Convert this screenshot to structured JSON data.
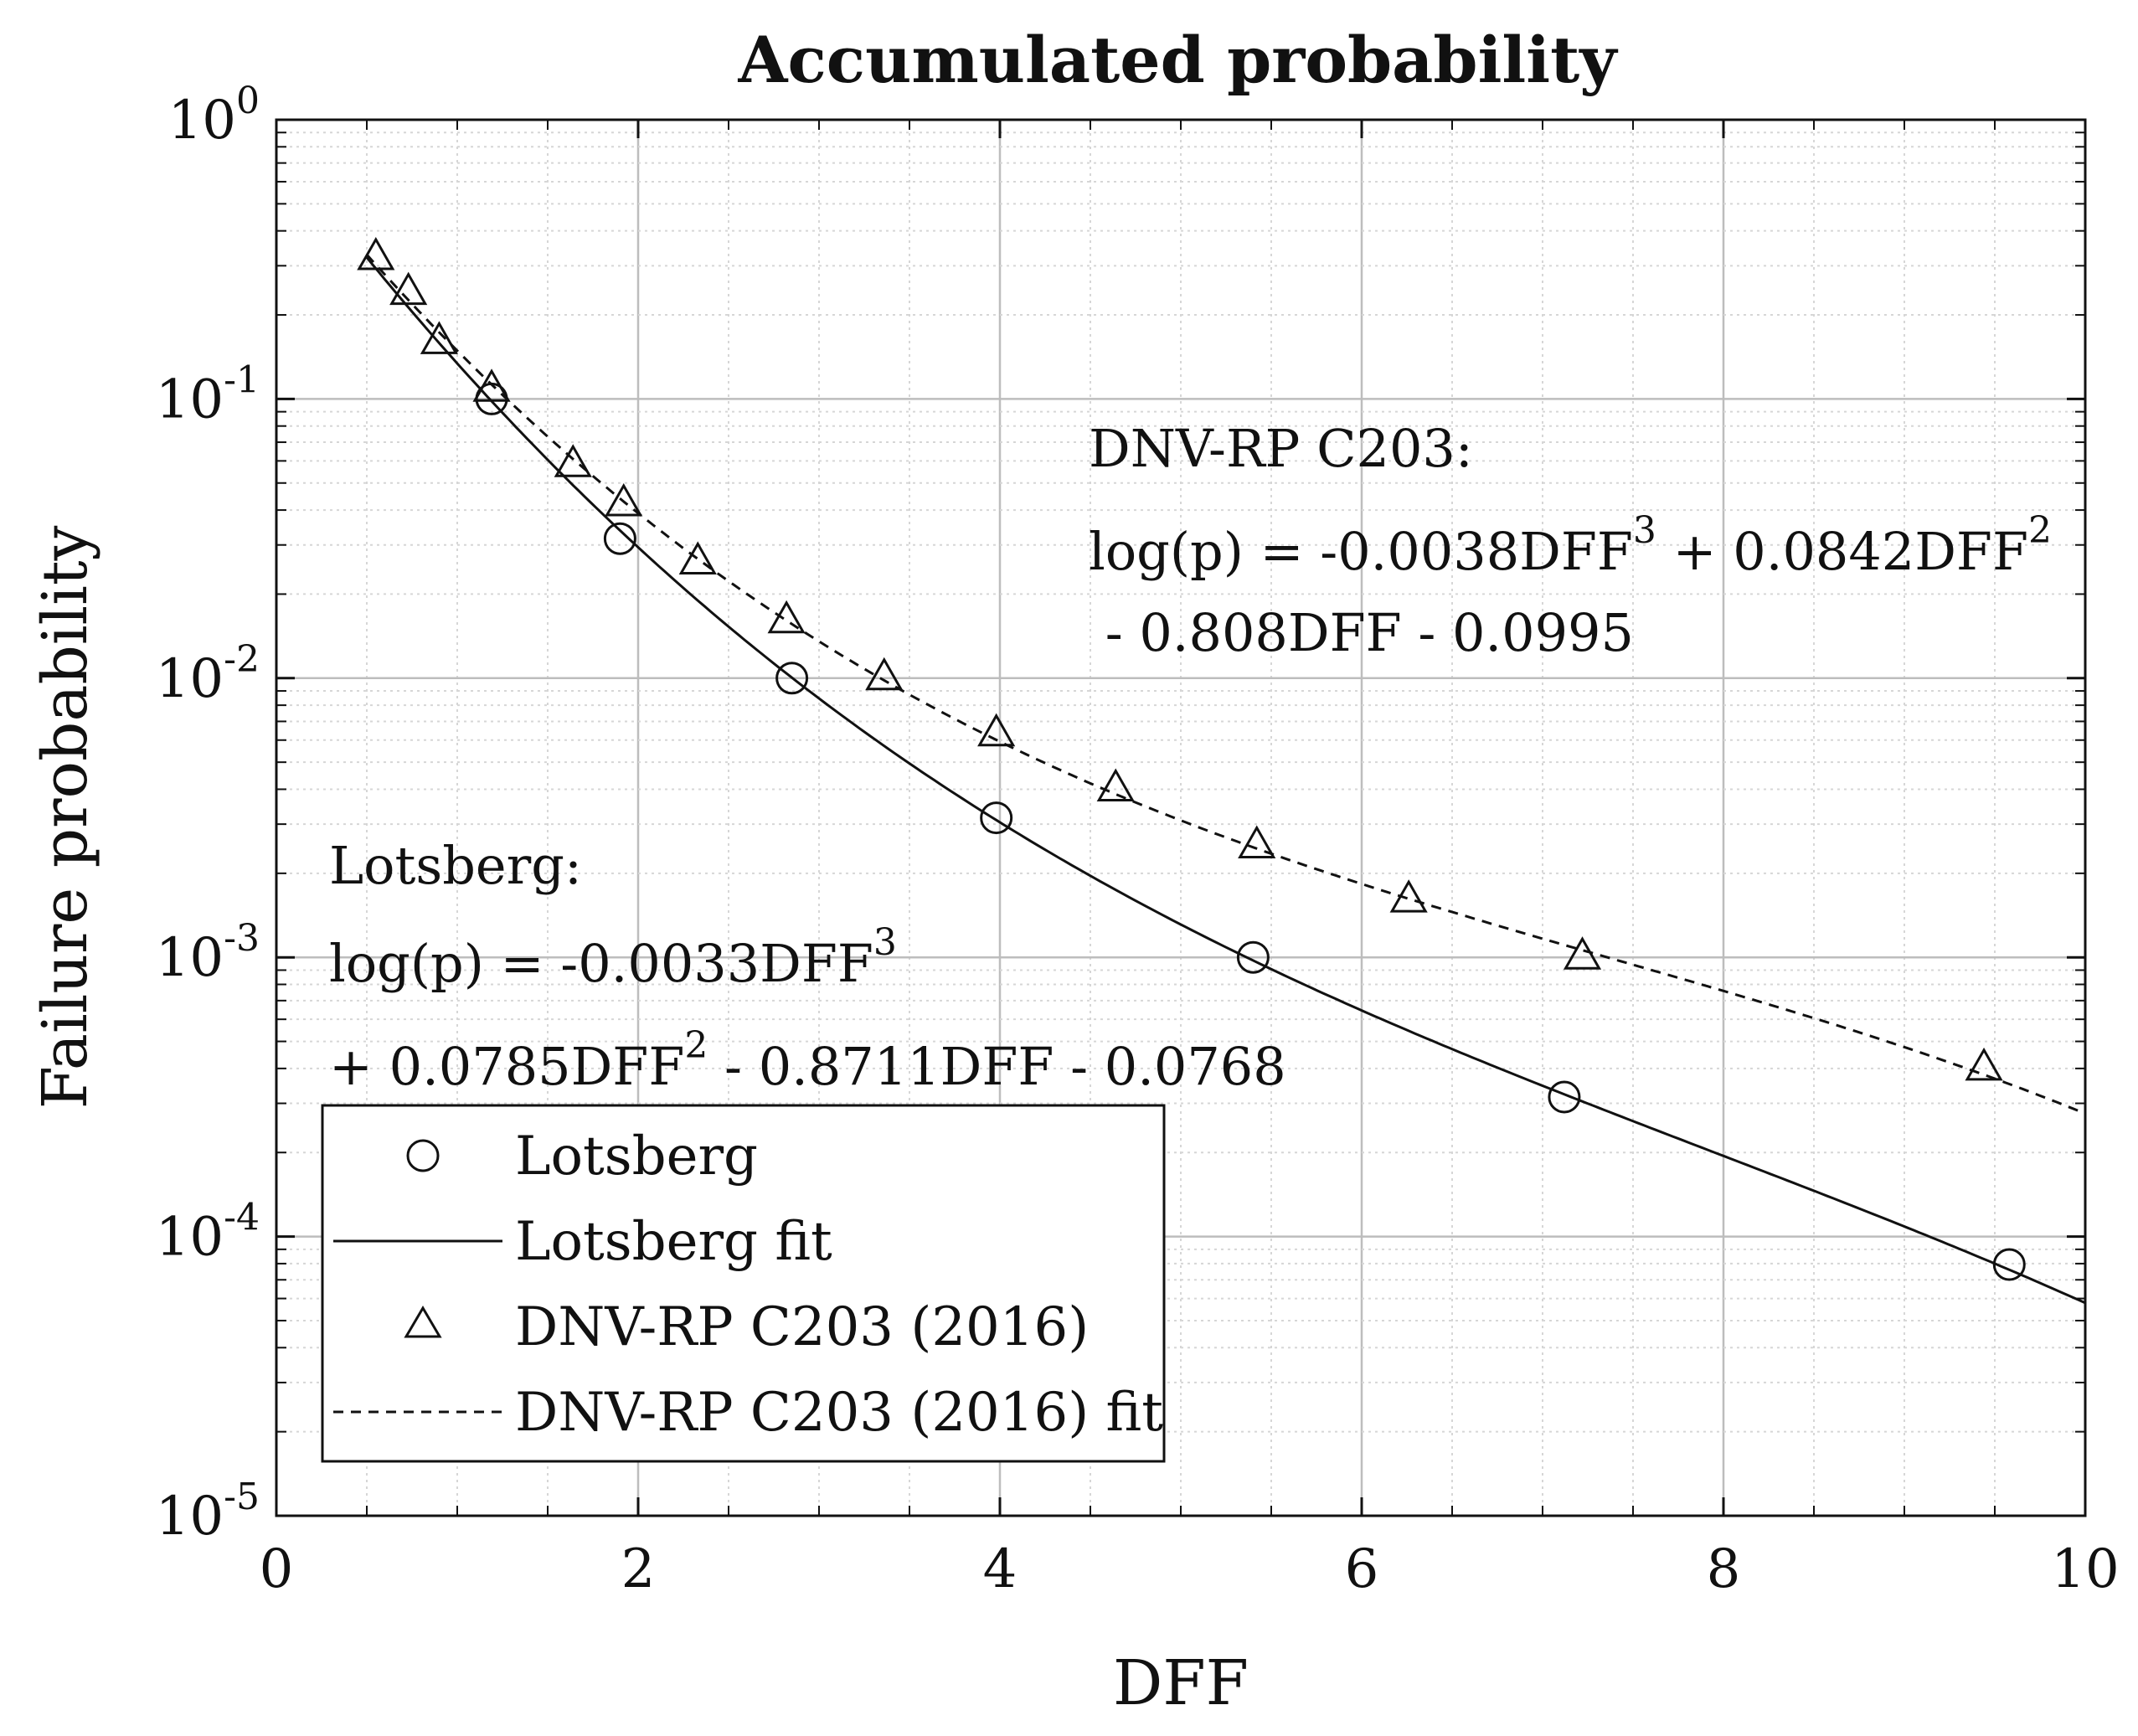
{
  "chart_data": {
    "type": "line",
    "title": "Accumulated probability",
    "xlabel": "DFF",
    "ylabel": "Failure probability",
    "xlim": [
      0,
      10
    ],
    "ylim_log10": [
      -5,
      0
    ],
    "yscale": "log",
    "grid": true,
    "x_ticks": [
      "0",
      "2",
      "4",
      "6",
      "8",
      "10"
    ],
    "y_ticks": [
      {
        "base": "10",
        "exp": "0"
      },
      {
        "base": "10",
        "exp": "-1"
      },
      {
        "base": "10",
        "exp": "-2"
      },
      {
        "base": "10",
        "exp": "-3"
      },
      {
        "base": "10",
        "exp": "-4"
      },
      {
        "base": "10",
        "exp": "-5"
      }
    ],
    "series": [
      {
        "name": "Lotsberg",
        "kind": "markers",
        "marker": "circle",
        "x": [
          1.19,
          1.9,
          2.85,
          3.98,
          5.4,
          7.12,
          9.58
        ],
        "y": [
          0.1,
          0.0316,
          0.01,
          0.00316,
          0.001,
          0.000316,
          7.94e-05
        ]
      },
      {
        "name": "Lotsberg fit",
        "kind": "line",
        "linestyle": "solid",
        "coefficients": [
          -0.0033,
          0.0785,
          -0.8711,
          -0.0768
        ],
        "x_range": [
          0.5,
          10
        ]
      },
      {
        "name": "DNV-RP C203 (2016)",
        "kind": "markers",
        "marker": "triangle",
        "x": [
          0.55,
          0.73,
          0.9,
          1.19,
          1.64,
          1.92,
          2.33,
          2.82,
          3.36,
          3.98,
          4.64,
          5.42,
          6.26,
          7.22,
          9.44
        ],
        "y": [
          0.32,
          0.24,
          0.16,
          0.108,
          0.058,
          0.042,
          0.026,
          0.016,
          0.01,
          0.0063,
          0.004,
          0.0025,
          0.0016,
          0.001,
          0.0004
        ]
      },
      {
        "name": "DNV-RP C203 (2016) fit",
        "kind": "line",
        "linestyle": "dashed",
        "coefficients": [
          -0.0038,
          0.0842,
          -0.808,
          -0.0995
        ],
        "x_range": [
          0.5,
          10
        ]
      }
    ],
    "annotations": {
      "dnv": {
        "heading": "DNV-RP C203:",
        "line1_a": "log(p) = -0.0038DFF",
        "line1_sup1": "3",
        "line1_b": " + 0.0842DFF",
        "line1_sup2": "2",
        "line2": " - 0.808DFF - 0.0995"
      },
      "lotsberg": {
        "heading": "Lotsberg:",
        "line1_a": "log(p) = -0.0033DFF",
        "line1_sup": "3",
        "line2_a": "+ 0.0785DFF",
        "line2_sup": "2",
        "line2_b": " - 0.8711DFF - 0.0768"
      }
    },
    "legend": {
      "position": "bottom-left",
      "entries": [
        "Lotsberg",
        "Lotsberg fit",
        "DNV-RP C203 (2016)",
        "DNV-RP C203 (2016) fit"
      ]
    }
  }
}
